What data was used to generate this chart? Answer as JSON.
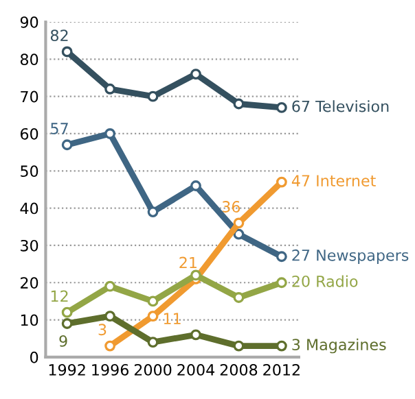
{
  "chart_data": {
    "type": "line",
    "categories": [
      "1992",
      "1996",
      "2000",
      "2004",
      "2008",
      "2012"
    ],
    "series": [
      {
        "name": "Television",
        "color": "#34505f",
        "values": [
          82,
          72,
          70,
          76,
          68,
          67
        ],
        "value_labels": [
          "82",
          null,
          null,
          null,
          null,
          "67"
        ]
      },
      {
        "name": "Newspapers",
        "color": "#3f6684",
        "values": [
          57,
          60,
          39,
          46,
          33,
          27
        ],
        "value_labels": [
          "57",
          null,
          null,
          null,
          null,
          "27"
        ]
      },
      {
        "name": "Internet",
        "color": "#f09a30",
        "values": [
          null,
          3,
          11,
          21,
          36,
          47
        ],
        "value_labels": [
          null,
          "3",
          "11",
          "21",
          "36",
          "47"
        ]
      },
      {
        "name": "Radio",
        "color": "#93a646",
        "values": [
          12,
          19,
          15,
          22,
          16,
          20
        ],
        "value_labels": [
          "12",
          null,
          null,
          null,
          null,
          "20"
        ]
      },
      {
        "name": "Magazines",
        "color": "#5e6e2c",
        "values": [
          9,
          11,
          4,
          6,
          3,
          3
        ],
        "value_labels": [
          "9",
          null,
          null,
          null,
          null,
          "3"
        ]
      }
    ],
    "ylim": [
      0,
      90
    ],
    "yticks": [
      0,
      10,
      20,
      30,
      40,
      50,
      60,
      70,
      80,
      90
    ],
    "grid": "y",
    "marker": "circle",
    "line_style": "solid",
    "legend": false
  }
}
